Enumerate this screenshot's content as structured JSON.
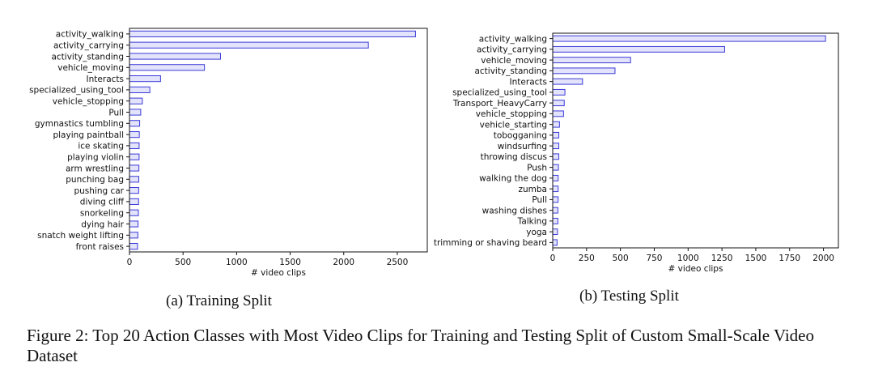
{
  "chart_data": [
    {
      "type": "bar",
      "orientation": "horizontal",
      "categories": [
        "activity_walking",
        "activity_carrying",
        "activity_standing",
        "vehicle_moving",
        "Interacts",
        "specialized_using_tool",
        "vehicle_stopping",
        "Pull",
        "gymnastics tumbling",
        "playing paintball",
        "ice skating",
        "playing violin",
        "arm wrestling",
        "punching bag",
        "pushing car",
        "diving cliff",
        "snorkeling",
        "dying hair",
        "snatch weight lifting",
        "front raises"
      ],
      "values": [
        2670,
        2230,
        850,
        700,
        290,
        190,
        120,
        105,
        95,
        92,
        90,
        90,
        88,
        87,
        86,
        85,
        83,
        80,
        78,
        75
      ],
      "xlabel": "# video clips",
      "ylabel": "",
      "xlim": [
        0,
        2780
      ],
      "xticks": [
        0,
        500,
        1000,
        1500,
        2000,
        2500
      ],
      "bar_fill": "#e3e3fb",
      "bar_stroke": "#3b3bd9",
      "caption": "(a) Training Split"
    },
    {
      "type": "bar",
      "orientation": "horizontal",
      "categories": [
        "activity_walking",
        "activity_carrying",
        "vehicle_moving",
        "activity_standing",
        "Interacts",
        "specialized_using_tool",
        "Transport_HeavyCarry",
        "vehicle_stopping",
        "vehicle_starting",
        "tobogganing",
        "windsurfing",
        "throwing discus",
        "Push",
        "walking the dog",
        "zumba",
        "Pull",
        "washing dishes",
        "Talking",
        "yoga",
        "trimming or shaving beard"
      ],
      "values": [
        2015,
        1270,
        575,
        460,
        220,
        90,
        85,
        80,
        50,
        45,
        45,
        45,
        42,
        40,
        40,
        40,
        38,
        38,
        35,
        32
      ],
      "xlabel": "# video clips",
      "ylabel": "",
      "xlim": [
        0,
        2110
      ],
      "xticks": [
        0,
        250,
        500,
        750,
        1000,
        1250,
        1500,
        1750,
        2000
      ],
      "bar_fill": "#e3e3fb",
      "bar_stroke": "#3b3bd9",
      "caption": "(b) Testing Split"
    }
  ],
  "figure_caption": "Figure 2: Top 20 Action Classes with Most Video Clips for Training and Testing Split of Custom Small-Scale Video Dataset"
}
